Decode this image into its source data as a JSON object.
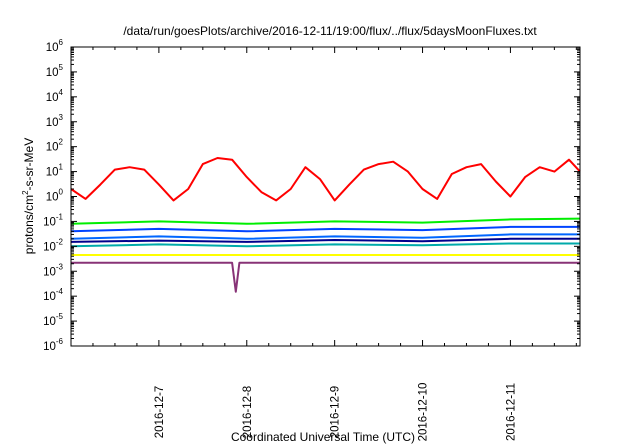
{
  "chart_data": {
    "type": "line",
    "title": "/data/run/goesPlots/archive/2016-12-11/19:00/flux/../flux/5daysMoonFluxes.txt",
    "xlabel": "Coordinated Universal Time (UTC)",
    "ylabel": {
      "pre": "protons/cm",
      "sup": "2",
      "post": "-s-sr-MeV"
    },
    "y_scale": "log",
    "ylim": [
      1e-06,
      1000000
    ],
    "y_ticks": [
      {
        "base": "10",
        "exp": "-6",
        "value": 1e-06
      },
      {
        "base": "10",
        "exp": "-5",
        "value": 1e-05
      },
      {
        "base": "10",
        "exp": "-4",
        "value": 0.0001
      },
      {
        "base": "10",
        "exp": "-3",
        "value": 0.001
      },
      {
        "base": "10",
        "exp": "-2",
        "value": 0.01
      },
      {
        "base": "10",
        "exp": "-1",
        "value": 0.1
      },
      {
        "base": "10",
        "exp": "0",
        "value": 1
      },
      {
        "base": "10",
        "exp": "1",
        "value": 10
      },
      {
        "base": "10",
        "exp": "2",
        "value": 100
      },
      {
        "base": "10",
        "exp": "3",
        "value": 1000
      },
      {
        "base": "10",
        "exp": "4",
        "value": 10000
      },
      {
        "base": "10",
        "exp": "5",
        "value": 100000
      },
      {
        "base": "10",
        "exp": "6",
        "value": 1000000
      }
    ],
    "xlim": [
      "2016-12-06 00:00",
      "2016-12-11 19:00"
    ],
    "x_ticks": [
      "2016-12-7",
      "2016-12-8",
      "2016-12-9",
      "2016-12-10",
      "2016-12-11"
    ],
    "grid": false,
    "legend": "none",
    "series": [
      {
        "color": "#ff0000",
        "x": [
          "2016-12-06 00:00",
          "2016-12-06 04:00",
          "2016-12-06 08:00",
          "2016-12-06 12:00",
          "2016-12-06 16:00",
          "2016-12-06 20:00",
          "2016-12-07 00:00",
          "2016-12-07 04:00",
          "2016-12-07 08:00",
          "2016-12-07 12:00",
          "2016-12-07 16:00",
          "2016-12-07 20:00",
          "2016-12-08 00:00",
          "2016-12-08 04:00",
          "2016-12-08 08:00",
          "2016-12-08 12:00",
          "2016-12-08 16:00",
          "2016-12-08 20:00",
          "2016-12-09 00:00",
          "2016-12-09 04:00",
          "2016-12-09 08:00",
          "2016-12-09 12:00",
          "2016-12-09 16:00",
          "2016-12-09 20:00",
          "2016-12-10 00:00",
          "2016-12-10 04:00",
          "2016-12-10 08:00",
          "2016-12-10 12:00",
          "2016-12-10 16:00",
          "2016-12-10 20:00",
          "2016-12-11 00:00",
          "2016-12-11 04:00",
          "2016-12-11 08:00",
          "2016-12-11 12:00",
          "2016-12-11 16:00",
          "2016-12-11 19:00"
        ],
        "values": [
          2,
          0.8,
          3,
          12,
          15,
          12,
          3,
          0.7,
          2,
          20,
          35,
          30,
          6,
          1.5,
          0.7,
          2,
          15,
          5,
          0.7,
          3,
          12,
          20,
          25,
          10,
          2,
          0.8,
          8,
          15,
          20,
          4,
          1,
          6,
          15,
          10,
          30,
          10
        ]
      },
      {
        "color": "#00ee00",
        "x": [
          "2016-12-06 00:00",
          "2016-12-07 00:00",
          "2016-12-08 00:00",
          "2016-12-09 00:00",
          "2016-12-10 00:00",
          "2016-12-11 00:00",
          "2016-12-11 19:00"
        ],
        "values": [
          0.08,
          0.1,
          0.08,
          0.1,
          0.09,
          0.12,
          0.13
        ]
      },
      {
        "color": "#0044ff",
        "x": [
          "2016-12-06 00:00",
          "2016-12-07 00:00",
          "2016-12-08 00:00",
          "2016-12-09 00:00",
          "2016-12-10 00:00",
          "2016-12-11 00:00",
          "2016-12-11 19:00"
        ],
        "values": [
          0.04,
          0.05,
          0.04,
          0.05,
          0.045,
          0.06,
          0.06
        ]
      },
      {
        "color": "#0066ff",
        "x": [
          "2016-12-06 00:00",
          "2016-12-07 00:00",
          "2016-12-08 00:00",
          "2016-12-09 00:00",
          "2016-12-10 00:00",
          "2016-12-11 00:00",
          "2016-12-11 19:00"
        ],
        "values": [
          0.02,
          0.025,
          0.02,
          0.025,
          0.022,
          0.03,
          0.03
        ]
      },
      {
        "color": "#00008b",
        "x": [
          "2016-12-06 00:00",
          "2016-12-07 00:00",
          "2016-12-08 00:00",
          "2016-12-09 00:00",
          "2016-12-10 00:00",
          "2016-12-11 00:00",
          "2016-12-11 19:00"
        ],
        "values": [
          0.015,
          0.017,
          0.015,
          0.018,
          0.016,
          0.02,
          0.02
        ]
      },
      {
        "color": "#00aaaa",
        "x": [
          "2016-12-06 00:00",
          "2016-12-07 00:00",
          "2016-12-08 00:00",
          "2016-12-09 00:00",
          "2016-12-10 00:00",
          "2016-12-11 00:00",
          "2016-12-11 19:00"
        ],
        "values": [
          0.01,
          0.012,
          0.01,
          0.012,
          0.011,
          0.013,
          0.013
        ]
      },
      {
        "color": "#ffff00",
        "x": [
          "2016-12-06 00:00",
          "2016-12-07 00:00",
          "2016-12-08 00:00",
          "2016-12-09 00:00",
          "2016-12-10 00:00",
          "2016-12-11 00:00",
          "2016-12-11 19:00"
        ],
        "values": [
          0.0045,
          0.0045,
          0.0045,
          0.0045,
          0.0045,
          0.0045,
          0.0045
        ]
      },
      {
        "color": "#883377",
        "x": [
          "2016-12-06 00:00",
          "2016-12-07 00:00",
          "2016-12-07 20:00",
          "2016-12-07 21:00",
          "2016-12-07 22:00",
          "2016-12-08 00:00",
          "2016-12-09 00:00",
          "2016-12-10 00:00",
          "2016-12-11 00:00",
          "2016-12-11 19:00"
        ],
        "values": [
          0.0022,
          0.0022,
          0.0022,
          0.00015,
          0.0022,
          0.0022,
          0.0022,
          0.0022,
          0.0022,
          0.0022
        ]
      }
    ]
  }
}
